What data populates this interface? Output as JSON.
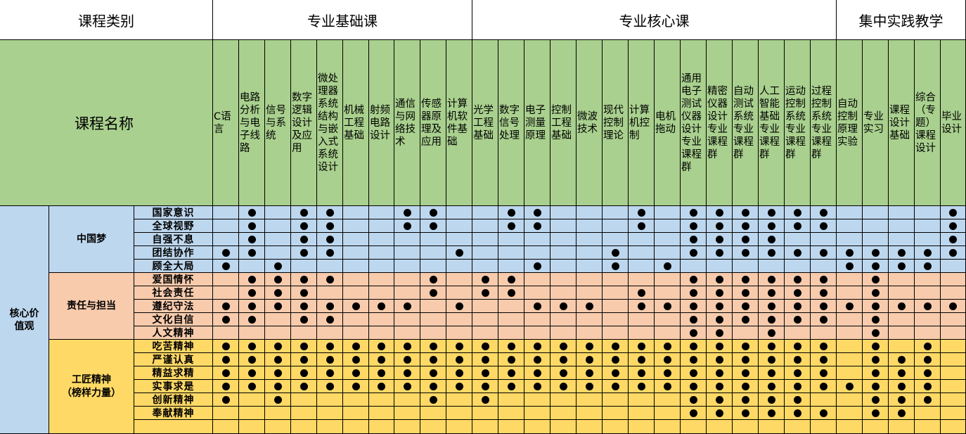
{
  "header": {
    "category_label": "课程类别",
    "name_label": "课程名称",
    "groups": [
      {
        "label": "专业基础课",
        "span": 10
      },
      {
        "label": "专业核心课",
        "span": 14
      },
      {
        "label": "集中实践教学",
        "span": 5
      }
    ]
  },
  "courses": [
    "C语言",
    "电路分析与电子线路",
    "信号与系统",
    "数字逻辑设计及应用",
    "微处理器系统结构与嵌入式系统设计",
    "机械工程基础",
    "射频电路设计",
    "通信与网络技术",
    "传感器原理及应用",
    "计算机软件基础",
    "光学工程基础",
    "数字信号处理",
    "电子测量原理",
    "控制工程基础",
    "微波技术",
    "现代控制理论",
    "计算机控制",
    "电机拖动",
    "通用电子测试仪器设计专业课程群",
    "精密仪器设计专业课程群",
    "自动测试系统专业课程群",
    "人工智能基础专业课程群",
    "运动控制系统专业课程群",
    "过程控制系统专业课程群",
    "自动控制原理实验",
    "专业实习",
    "课程设计基础",
    "综合（专题）课程设计",
    "毕业设计"
  ],
  "core_label": "核心价值观",
  "groups": [
    {
      "name": "中国梦",
      "color": "#bdd7ee",
      "rows": [
        {
          "value": "国家意识",
          "marks": [
            0,
            1,
            0,
            1,
            1,
            0,
            0,
            1,
            1,
            0,
            0,
            1,
            1,
            0,
            0,
            0,
            1,
            0,
            1,
            1,
            1,
            1,
            1,
            1,
            0,
            0,
            0,
            0,
            1
          ]
        },
        {
          "value": "全球视野",
          "marks": [
            0,
            1,
            0,
            1,
            1,
            0,
            0,
            1,
            1,
            0,
            0,
            1,
            1,
            0,
            0,
            0,
            1,
            0,
            1,
            1,
            1,
            1,
            1,
            1,
            0,
            0,
            0,
            0,
            1
          ]
        },
        {
          "value": "自强不息",
          "marks": [
            0,
            1,
            0,
            1,
            1,
            0,
            0,
            0,
            0,
            0,
            0,
            0,
            0,
            0,
            0,
            0,
            0,
            0,
            1,
            1,
            1,
            1,
            0,
            0,
            0,
            0,
            0,
            0,
            1
          ]
        },
        {
          "value": "团结协作",
          "marks": [
            1,
            1,
            0,
            1,
            1,
            0,
            0,
            0,
            0,
            1,
            0,
            0,
            0,
            0,
            0,
            1,
            0,
            0,
            1,
            1,
            1,
            1,
            1,
            1,
            1,
            1,
            1,
            1,
            1
          ]
        },
        {
          "value": "顾全大局",
          "marks": [
            1,
            0,
            1,
            0,
            0,
            0,
            0,
            0,
            0,
            0,
            0,
            0,
            1,
            0,
            0,
            1,
            0,
            1,
            0,
            0,
            0,
            0,
            0,
            0,
            1,
            1,
            1,
            1,
            0
          ]
        }
      ]
    },
    {
      "name": "责任与担当",
      "color": "#f8cbad",
      "rows": [
        {
          "value": "爱国情怀",
          "marks": [
            0,
            1,
            1,
            1,
            1,
            0,
            0,
            0,
            1,
            0,
            1,
            1,
            0,
            0,
            0,
            0,
            0,
            0,
            1,
            1,
            1,
            1,
            1,
            1,
            0,
            1,
            0,
            0,
            0
          ]
        },
        {
          "value": "社会责任",
          "marks": [
            0,
            1,
            1,
            1,
            0,
            0,
            0,
            0,
            1,
            0,
            1,
            1,
            0,
            0,
            0,
            0,
            1,
            0,
            1,
            1,
            1,
            1,
            1,
            1,
            0,
            1,
            0,
            0,
            0
          ]
        },
        {
          "value": "遵纪守法",
          "marks": [
            1,
            1,
            1,
            1,
            1,
            1,
            1,
            1,
            0,
            1,
            0,
            0,
            1,
            1,
            1,
            0,
            1,
            1,
            1,
            1,
            1,
            1,
            1,
            1,
            1,
            1,
            1,
            1,
            1
          ]
        },
        {
          "value": "文化自信",
          "marks": [
            1,
            1,
            0,
            1,
            1,
            0,
            0,
            0,
            0,
            0,
            0,
            0,
            0,
            0,
            0,
            0,
            0,
            0,
            1,
            1,
            1,
            1,
            1,
            1,
            0,
            1,
            0,
            0,
            0
          ]
        },
        {
          "value": "人文精神",
          "marks": [
            0,
            0,
            0,
            0,
            0,
            0,
            0,
            0,
            0,
            0,
            0,
            0,
            0,
            0,
            0,
            0,
            0,
            0,
            1,
            1,
            0,
            1,
            0,
            0,
            0,
            1,
            0,
            0,
            0
          ]
        }
      ]
    },
    {
      "name": "工匠精神（榜样力量）",
      "name_line1": "工匠精神",
      "name_line2": "（榜样力量）",
      "color": "#ffd966",
      "rows": [
        {
          "value": "吃苦精神",
          "marks": [
            1,
            1,
            1,
            1,
            1,
            1,
            1,
            1,
            1,
            1,
            1,
            1,
            1,
            1,
            1,
            1,
            1,
            1,
            1,
            1,
            1,
            1,
            1,
            1,
            0,
            1,
            0,
            1,
            0
          ]
        },
        {
          "value": "严谨认真",
          "marks": [
            1,
            1,
            1,
            1,
            1,
            1,
            1,
            1,
            1,
            1,
            1,
            1,
            1,
            1,
            1,
            1,
            1,
            1,
            1,
            1,
            1,
            1,
            1,
            1,
            0,
            1,
            1,
            1,
            0
          ]
        },
        {
          "value": "精益求精",
          "marks": [
            1,
            1,
            1,
            1,
            1,
            1,
            1,
            1,
            1,
            1,
            1,
            1,
            1,
            1,
            1,
            1,
            1,
            1,
            1,
            1,
            1,
            1,
            1,
            1,
            0,
            1,
            1,
            1,
            0
          ]
        },
        {
          "value": "实事求是",
          "marks": [
            1,
            1,
            1,
            1,
            1,
            1,
            1,
            1,
            1,
            1,
            1,
            1,
            1,
            1,
            1,
            1,
            1,
            1,
            1,
            1,
            1,
            1,
            1,
            1,
            1,
            1,
            1,
            1,
            0
          ]
        },
        {
          "value": "创新精神",
          "marks": [
            1,
            0,
            1,
            0,
            0,
            0,
            0,
            0,
            1,
            0,
            1,
            0,
            0,
            0,
            0,
            0,
            0,
            0,
            1,
            1,
            1,
            1,
            1,
            0,
            0,
            1,
            1,
            1,
            0
          ]
        },
        {
          "value": "奉献精神",
          "marks": [
            0,
            0,
            0,
            0,
            0,
            0,
            0,
            0,
            0,
            0,
            0,
            0,
            0,
            0,
            0,
            0,
            0,
            0,
            1,
            1,
            1,
            1,
            1,
            1,
            0,
            1,
            1,
            0,
            0
          ]
        }
      ]
    }
  ]
}
